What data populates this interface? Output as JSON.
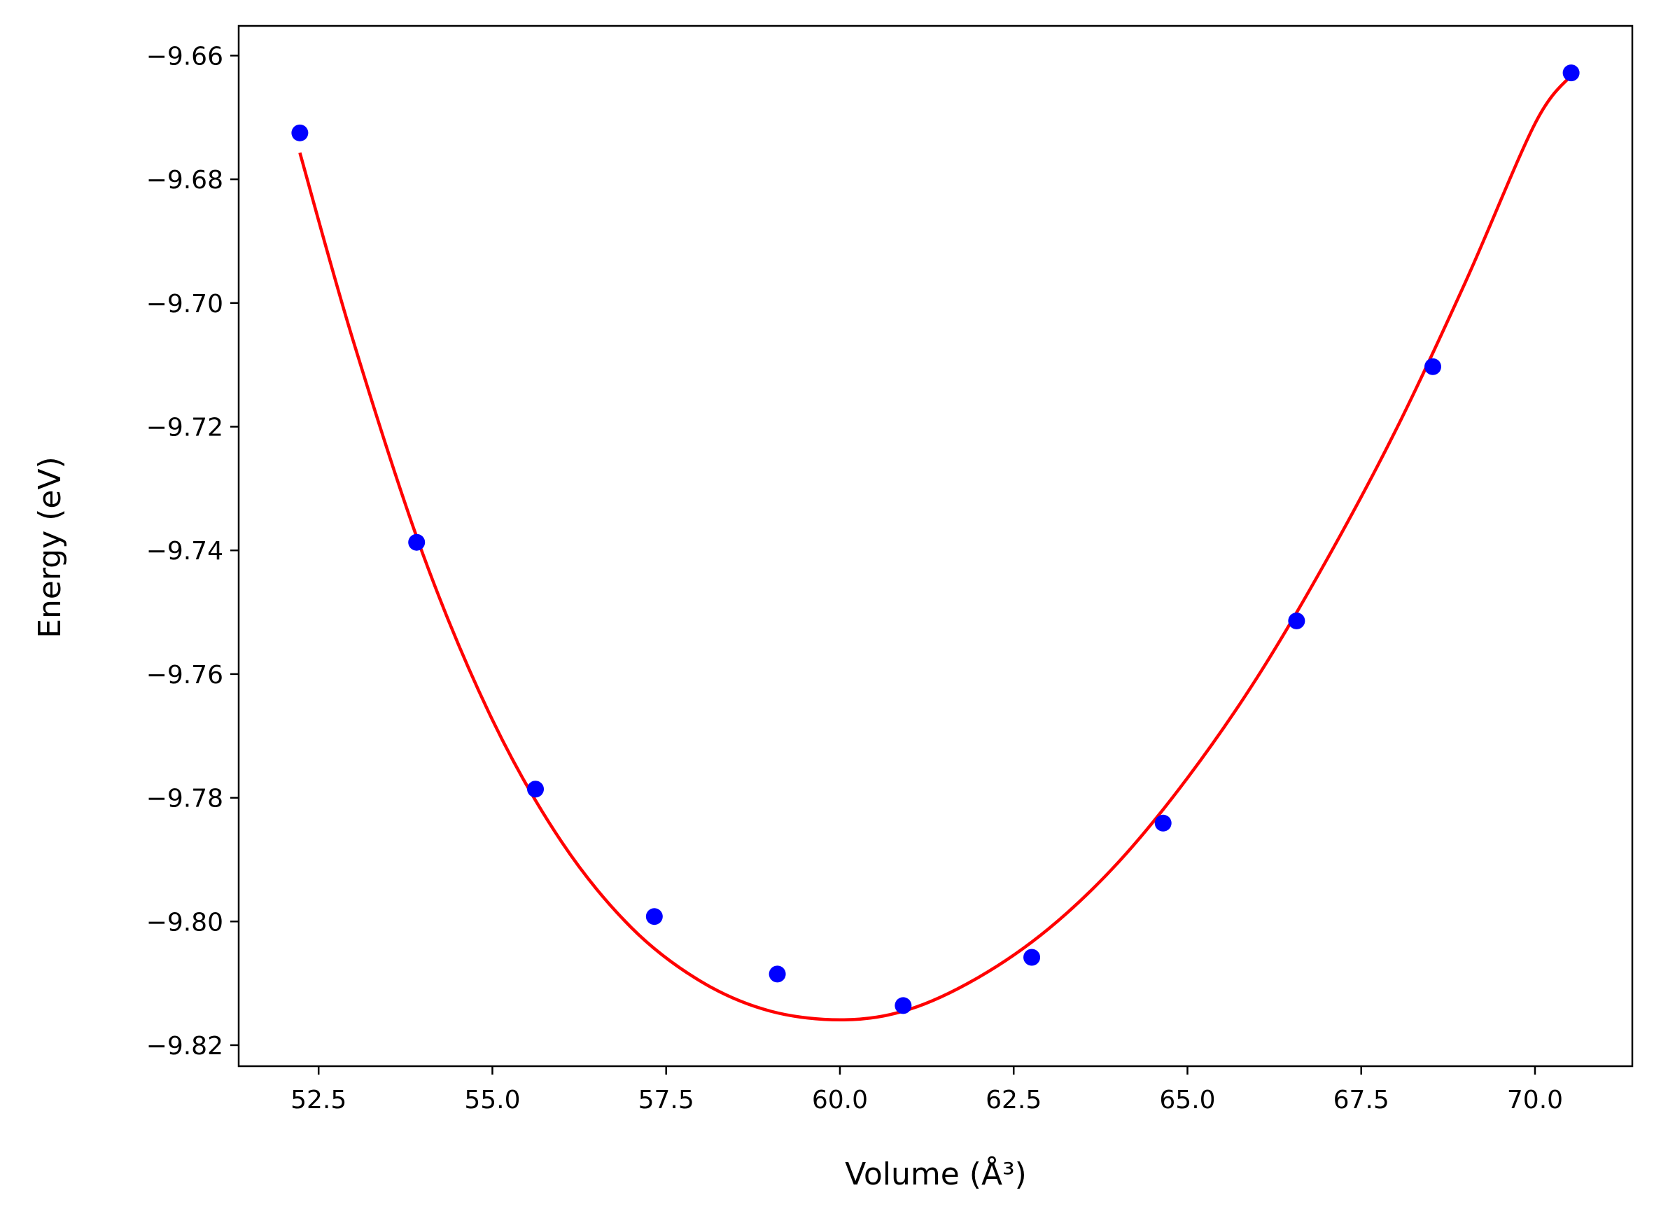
{
  "chart_data": {
    "type": "scatter",
    "xlabel": "Volume (Å³)",
    "ylabel": "Energy (eV)",
    "xlim": [
      51.35,
      71.4
    ],
    "ylim": [
      -9.8234,
      -9.6552
    ],
    "grid": false,
    "x_ticks": [
      52.5,
      55.0,
      57.5,
      60.0,
      62.5,
      65.0,
      67.5,
      70.0
    ],
    "x_tick_labels": [
      "52.5",
      "55.0",
      "57.5",
      "60.0",
      "62.5",
      "65.0",
      "67.5",
      "70.0"
    ],
    "y_ticks": [
      -9.66,
      -9.68,
      -9.7,
      -9.72,
      -9.74,
      -9.76,
      -9.78,
      -9.8,
      -9.82
    ],
    "y_tick_labels": [
      "−9.66",
      "−9.68",
      "−9.70",
      "−9.72",
      "−9.74",
      "−9.76",
      "−9.78",
      "−9.80",
      "−9.82"
    ],
    "series": [
      {
        "kind": "points",
        "color": "#0000ff",
        "x": [
          52.23,
          53.91,
          55.62,
          57.33,
          59.1,
          60.91,
          62.76,
          64.65,
          66.57,
          68.53,
          70.52
        ],
        "y": [
          -9.6725,
          -9.7387,
          -9.7786,
          -9.7992,
          -9.8085,
          -9.8136,
          -9.8058,
          -9.7841,
          -9.7514,
          -9.7103,
          -9.6628
        ]
      },
      {
        "kind": "fit-curve",
        "color": "#ff0000",
        "x": [
          52.23,
          53.0,
          54.0,
          55.0,
          56.0,
          57.0,
          58.0,
          59.0,
          60.06,
          61.0,
          62.0,
          63.0,
          64.0,
          65.0,
          66.0,
          67.0,
          68.0,
          69.0,
          70.0,
          70.52
        ],
        "y": [
          -9.6757,
          -9.7062,
          -9.7406,
          -9.7674,
          -9.7872,
          -9.801,
          -9.8097,
          -9.8145,
          -9.8159,
          -9.8142,
          -9.809,
          -9.8012,
          -9.7905,
          -9.7768,
          -9.7606,
          -9.7416,
          -9.7205,
          -9.6966,
          -9.671,
          -9.6632
        ]
      }
    ]
  }
}
